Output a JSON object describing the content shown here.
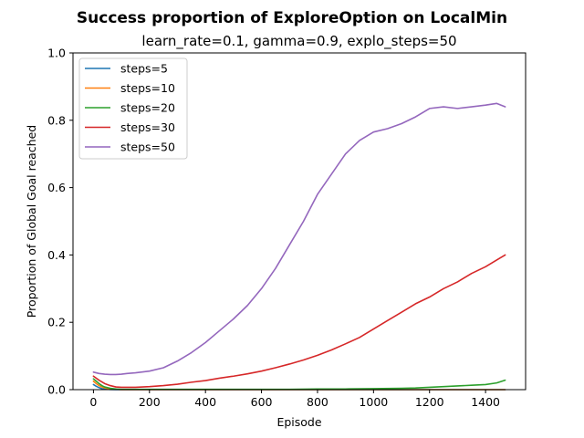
{
  "chart_data": {
    "type": "line",
    "title": "Success proportion of ExploreOption on LocalMin",
    "subtitle": "learn_rate=0.1, gamma=0.9, explo_steps=50",
    "xlabel": "Episode",
    "ylabel": "Proportion of Global Goal reached",
    "xlim": [
      -73,
      1543
    ],
    "ylim": [
      0,
      1.0
    ],
    "xticks": [
      0,
      200,
      400,
      600,
      800,
      1000,
      1200,
      1400
    ],
    "yticks": [
      0.0,
      0.2,
      0.4,
      0.6,
      0.8,
      1.0
    ],
    "xtick_labels": [
      "0",
      "200",
      "400",
      "600",
      "800",
      "1000",
      "1200",
      "1400"
    ],
    "ytick_labels": [
      "0.0",
      "0.2",
      "0.4",
      "0.6",
      "0.8",
      "1.0"
    ],
    "grid": false,
    "legend_position": "top-left",
    "series": [
      {
        "name": "steps=5",
        "color": "#1f77b4",
        "x": [
          0,
          10,
          20,
          30,
          40,
          50,
          60,
          80,
          100,
          150,
          200,
          300,
          400,
          600,
          800,
          1000,
          1200,
          1400,
          1470
        ],
        "y": [
          0.015,
          0.01,
          0.006,
          0.003,
          0.002,
          0.001,
          0.0005,
          0.0,
          0.0,
          0.0,
          0.0,
          0.0,
          0.0,
          0.0,
          0.0,
          0.0,
          0.0,
          0.0,
          0.0
        ]
      },
      {
        "name": "steps=10",
        "color": "#ff7f0e",
        "x": [
          0,
          10,
          20,
          30,
          40,
          60,
          80,
          100,
          150,
          200,
          300,
          400,
          600,
          800,
          1000,
          1200,
          1400,
          1470
        ],
        "y": [
          0.025,
          0.018,
          0.012,
          0.008,
          0.005,
          0.002,
          0.001,
          0.0,
          0.0,
          0.0,
          0.0,
          0.0,
          0.0,
          0.0,
          0.0,
          0.0,
          0.0,
          0.0
        ]
      },
      {
        "name": "steps=20",
        "color": "#2ca02c",
        "x": [
          0,
          10,
          20,
          30,
          40,
          60,
          80,
          100,
          150,
          200,
          300,
          400,
          500,
          600,
          700,
          800,
          900,
          1000,
          1100,
          1150,
          1200,
          1250,
          1300,
          1350,
          1400,
          1440,
          1470
        ],
        "y": [
          0.032,
          0.025,
          0.018,
          0.012,
          0.008,
          0.004,
          0.002,
          0.001,
          0.001,
          0.001,
          0.001,
          0.001,
          0.001,
          0.001,
          0.001,
          0.002,
          0.002,
          0.003,
          0.004,
          0.005,
          0.007,
          0.009,
          0.011,
          0.013,
          0.015,
          0.02,
          0.028
        ]
      },
      {
        "name": "steps=30",
        "color": "#d62728",
        "x": [
          0,
          20,
          40,
          60,
          80,
          100,
          150,
          200,
          250,
          300,
          350,
          400,
          450,
          500,
          550,
          600,
          650,
          700,
          750,
          800,
          850,
          900,
          950,
          1000,
          1050,
          1100,
          1150,
          1200,
          1250,
          1300,
          1350,
          1400,
          1450,
          1470
        ],
        "y": [
          0.04,
          0.028,
          0.018,
          0.012,
          0.008,
          0.007,
          0.007,
          0.009,
          0.012,
          0.016,
          0.022,
          0.027,
          0.034,
          0.04,
          0.047,
          0.055,
          0.065,
          0.076,
          0.088,
          0.102,
          0.118,
          0.136,
          0.155,
          0.18,
          0.205,
          0.23,
          0.255,
          0.275,
          0.3,
          0.32,
          0.345,
          0.365,
          0.39,
          0.4
        ]
      },
      {
        "name": "steps=50",
        "color": "#9467bd",
        "x": [
          0,
          20,
          40,
          60,
          80,
          100,
          120,
          150,
          200,
          250,
          300,
          350,
          400,
          450,
          500,
          550,
          600,
          650,
          700,
          750,
          800,
          850,
          900,
          950,
          1000,
          1050,
          1100,
          1150,
          1200,
          1250,
          1300,
          1350,
          1400,
          1440,
          1470
        ],
        "y": [
          0.052,
          0.048,
          0.046,
          0.045,
          0.045,
          0.046,
          0.048,
          0.05,
          0.055,
          0.065,
          0.085,
          0.11,
          0.14,
          0.175,
          0.21,
          0.25,
          0.3,
          0.36,
          0.43,
          0.5,
          0.58,
          0.64,
          0.7,
          0.74,
          0.765,
          0.775,
          0.79,
          0.81,
          0.835,
          0.84,
          0.835,
          0.84,
          0.845,
          0.85,
          0.84
        ]
      }
    ]
  }
}
